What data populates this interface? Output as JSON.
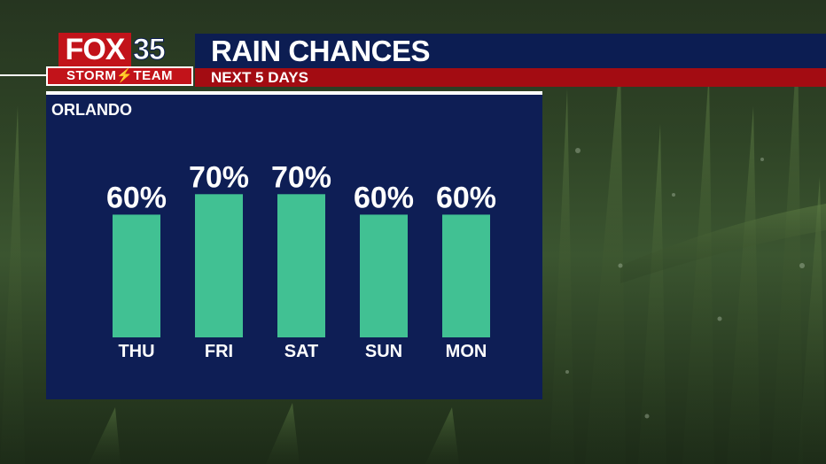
{
  "header": {
    "title": "RAIN CHANCES",
    "subtitle": "NEXT 5 DAYS"
  },
  "logo": {
    "brand": "FOX",
    "channel": "35",
    "team": "STORM⚡TEAM"
  },
  "colors": {
    "title_bar": "#0c1d52",
    "subtitle_bar": "#a30c12",
    "panel": "#0e1e55",
    "bar": "#41c193",
    "text": "#ffffff"
  },
  "chart_data": {
    "type": "bar",
    "title": "ORLANDO",
    "categories": [
      "THU",
      "FRI",
      "SAT",
      "SUN",
      "MON"
    ],
    "values": [
      60,
      70,
      70,
      60,
      60
    ],
    "value_labels": [
      "60%",
      "70%",
      "70%",
      "60%",
      "60%"
    ],
    "unit": "%",
    "ylim": [
      0,
      100
    ],
    "grid": false
  }
}
